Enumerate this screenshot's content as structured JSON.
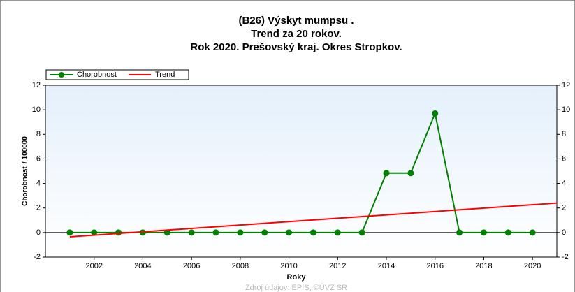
{
  "chart_data": {
    "type": "line",
    "title": [
      "(B26) Výskyt mumpsu .",
      "Trend za 20 rokov.",
      "Rok 2020. Prešovský kraj. Okres Stropkov."
    ],
    "xlabel": "Roky",
    "ylabel": "Chorobnosť / 100000",
    "source": "Zdroj údajov: EPIS, ©ÚVZ SR",
    "x": [
      2001,
      2002,
      2003,
      2004,
      2005,
      2006,
      2007,
      2008,
      2009,
      2010,
      2011,
      2012,
      2013,
      2014,
      2015,
      2016,
      2017,
      2018,
      2019,
      2020
    ],
    "series": [
      {
        "name": "Chorobnosť",
        "color": "#008000",
        "marker": true,
        "values": [
          0,
          0,
          0,
          0,
          0,
          0,
          0,
          0,
          0,
          0,
          0,
          0,
          0,
          4.84,
          4.84,
          9.7,
          0,
          0,
          0,
          0
        ]
      },
      {
        "name": "Trend",
        "color": "#ff0000",
        "marker": false,
        "x": [
          2001,
          2021
        ],
        "values": [
          -0.35,
          2.4
        ]
      }
    ],
    "xlim": [
      2000,
      2021
    ],
    "xticks": [
      2002,
      2004,
      2006,
      2008,
      2010,
      2012,
      2014,
      2016,
      2018,
      2020
    ],
    "ylim": [
      -2,
      12
    ],
    "yticks": [
      -2,
      0,
      2,
      4,
      6,
      8,
      10,
      12
    ],
    "legend": "top-left"
  }
}
